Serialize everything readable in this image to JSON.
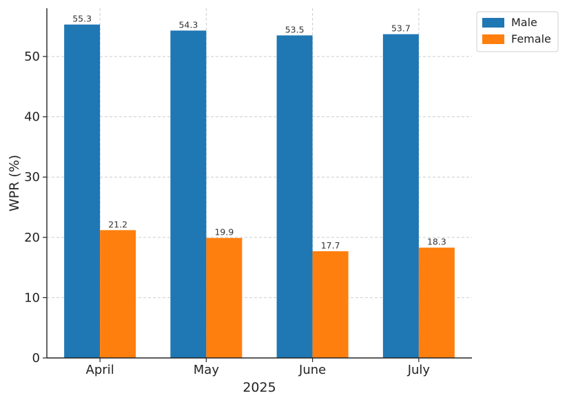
{
  "chart_data": {
    "type": "bar",
    "categories": [
      "April",
      "May",
      "June",
      "July"
    ],
    "series": [
      {
        "name": "Male",
        "values": [
          55.3,
          54.3,
          53.5,
          53.7
        ],
        "color": "#1f77b4"
      },
      {
        "name": "Female",
        "values": [
          21.2,
          19.9,
          17.7,
          18.3
        ],
        "color": "#ff7f0e"
      }
    ],
    "title": "",
    "xlabel": "2025",
    "ylabel": "WPR (%)",
    "ylim": [
      0,
      58
    ],
    "yticks": [
      0,
      10,
      20,
      30,
      40,
      50
    ],
    "grid": true,
    "legend_position": "top-right",
    "data_labels": true
  }
}
